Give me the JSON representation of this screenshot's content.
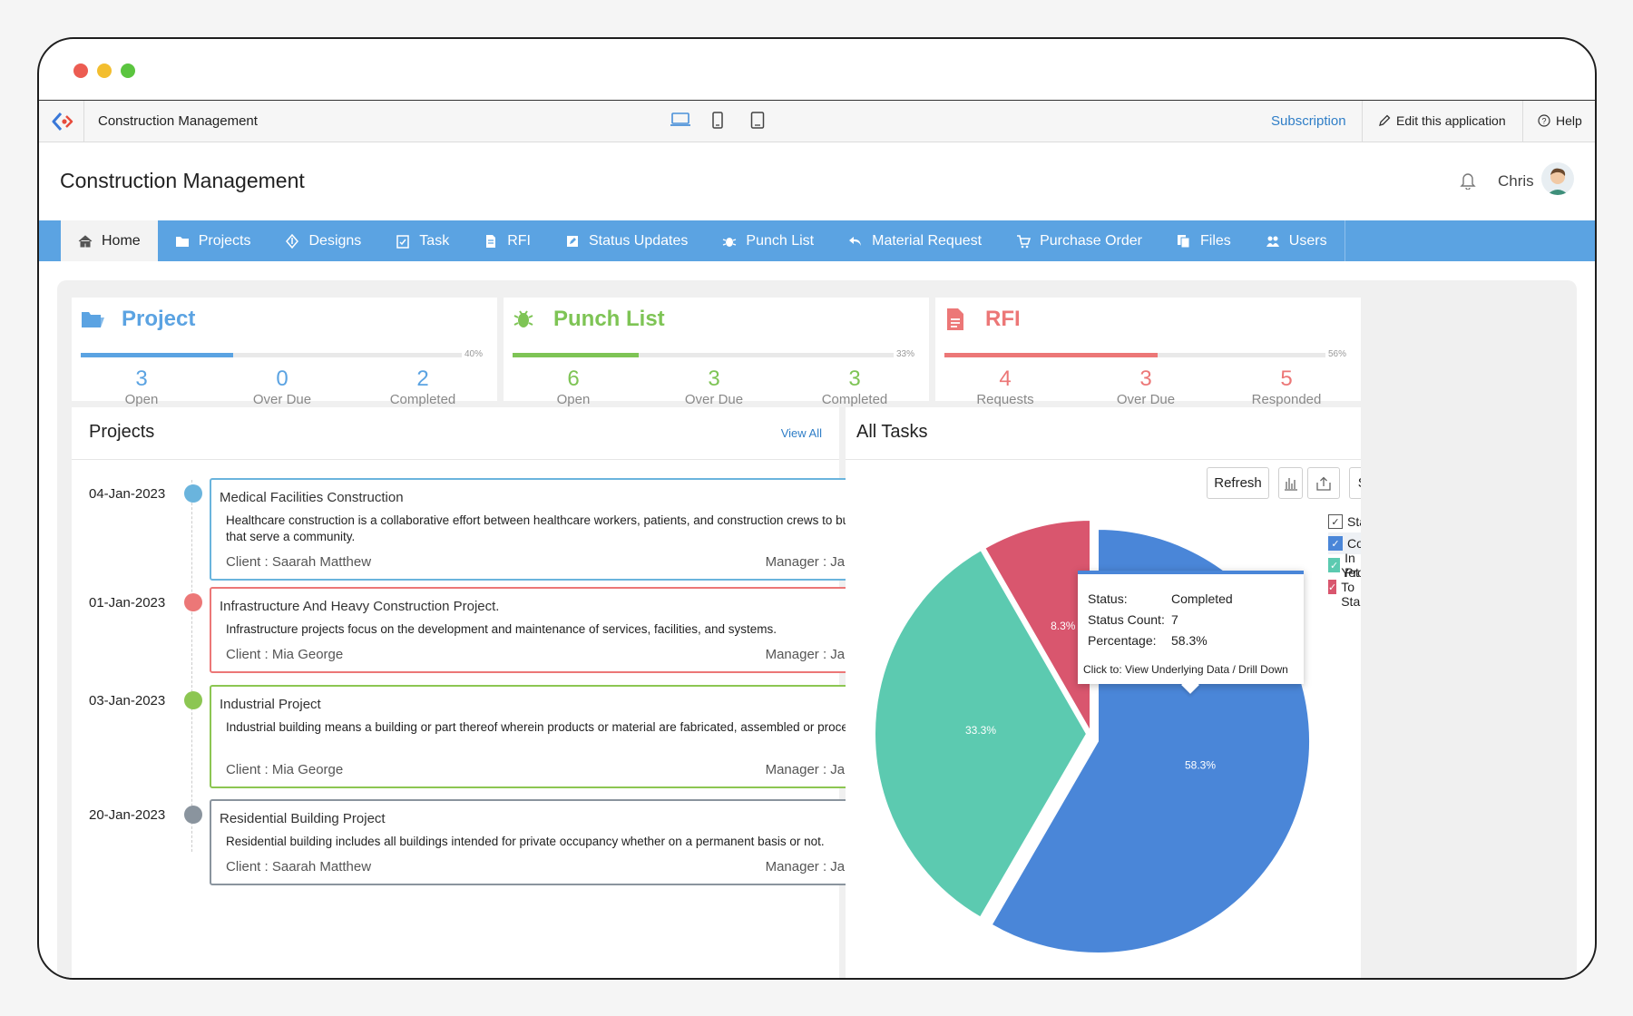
{
  "app": {
    "name": "Construction Management",
    "subscription": "Subscription",
    "edit": "Edit this application",
    "help": "Help"
  },
  "header": {
    "title": "Construction Management",
    "user": "Chris"
  },
  "nav": [
    {
      "label": "Home",
      "icon": "home-icon"
    },
    {
      "label": "Projects",
      "icon": "folder-icon"
    },
    {
      "label": "Designs",
      "icon": "design-icon"
    },
    {
      "label": "Task",
      "icon": "clipboard-icon"
    },
    {
      "label": "RFI",
      "icon": "document-icon"
    },
    {
      "label": "Status Updates",
      "icon": "edit-icon"
    },
    {
      "label": "Punch List",
      "icon": "bug-icon"
    },
    {
      "label": "Material Request",
      "icon": "reply-icon"
    },
    {
      "label": "Purchase Order",
      "icon": "cart-icon"
    },
    {
      "label": "Files",
      "icon": "files-icon"
    },
    {
      "label": "Users",
      "icon": "users-icon"
    }
  ],
  "stats": [
    {
      "title": "Project",
      "color": "#5ba3e2",
      "percent": 40,
      "percent_label": "40%",
      "items": [
        {
          "value": "3",
          "label": "Open"
        },
        {
          "value": "0",
          "label": "Over Due"
        },
        {
          "value": "2",
          "label": "Completed"
        }
      ]
    },
    {
      "title": "Punch List",
      "color": "#7ec455",
      "percent": 33,
      "percent_label": "33%",
      "items": [
        {
          "value": "6",
          "label": "Open"
        },
        {
          "value": "3",
          "label": "Over Due"
        },
        {
          "value": "3",
          "label": "Completed"
        }
      ]
    },
    {
      "title": "RFI",
      "color": "#ec7777",
      "percent": 56,
      "percent_label": "56%",
      "items": [
        {
          "value": "4",
          "label": "Requests"
        },
        {
          "value": "3",
          "label": "Over Due"
        },
        {
          "value": "5",
          "label": "Responded"
        }
      ]
    }
  ],
  "projects": {
    "title": "Projects",
    "view_all": "View All",
    "items": [
      {
        "date": "04-Jan-2023",
        "color": "#6ab4dd",
        "title": "Medical Facilities Construction",
        "desc": "Healthcare construction is a collaborative effort between healthcare workers, patients, and construction crews to bu ild facilities that serve a community.",
        "client": "Client : Saarah Matthew",
        "manager": "Manager : James Smith"
      },
      {
        "date": "01-Jan-2023",
        "color": "#ec7777",
        "title": "Infrastructure And Heavy Construction Project.",
        "desc": "Infrastructure projects focus on the development and maintenance of services, facilities, and systems.",
        "client": "Client : Mia George",
        "manager": "Manager : James Smith"
      },
      {
        "date": "03-Jan-2023",
        "color": "#8cc652",
        "title": "Industrial Project",
        "desc": "Industrial building means a building or part thereof wherein products or material are fabricated, assembled or proces sed.",
        "client": "Client : Mia George",
        "manager": "Manager : James Smith"
      },
      {
        "date": "20-Jan-2023",
        "color": "#8a949e",
        "title": "Residential Building Project",
        "desc": "Residential building includes all buildings intended for private occupancy whether on a permanent basis or not.",
        "client": "Client : Saarah Matthew",
        "manager": "Manager : James Smith"
      }
    ]
  },
  "tasks": {
    "title": "All Tasks",
    "refresh": "Refresh",
    "sort": "Sort",
    "legend_title": "Status",
    "tooltip": {
      "status_label": "Status:",
      "status_value": "Completed",
      "count_label": "Status Count:",
      "count_value": "7",
      "pct_label": "Percentage:",
      "pct_value": "58.3%",
      "hint": "Click to: View Underlying Data / Drill Down"
    }
  },
  "chart_data": {
    "type": "pie",
    "series": [
      {
        "name": "Completed",
        "value": 58.3,
        "label": "58.3%",
        "color": "#4a86d8"
      },
      {
        "name": "In Progress",
        "value": 33.3,
        "label": "33.3%",
        "color": "#5ccab0"
      },
      {
        "name": "Yet To Start",
        "value": 8.3,
        "label": "8.3%",
        "color": "#d9566e"
      }
    ]
  }
}
